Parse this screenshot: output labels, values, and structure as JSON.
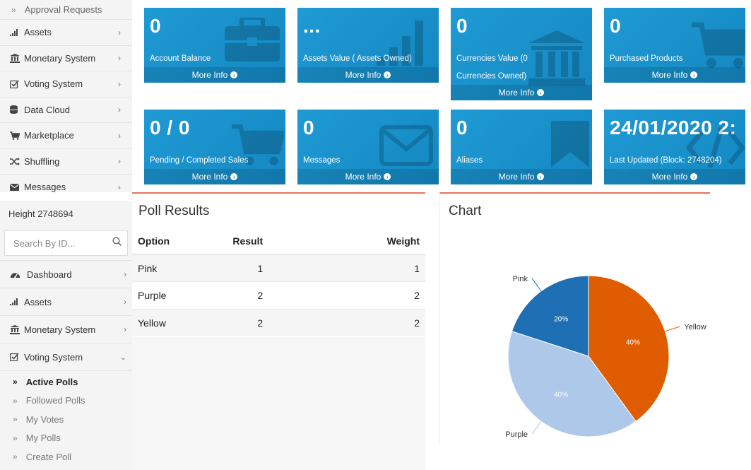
{
  "top_sidebar": {
    "approval_requests": "Approval Requests",
    "items": [
      {
        "label": "Assets",
        "icon": "bar-chart-icon"
      },
      {
        "label": "Monetary System",
        "icon": "bank-icon"
      },
      {
        "label": "Voting System",
        "icon": "checkbox-icon"
      },
      {
        "label": "Data Cloud",
        "icon": "database-icon"
      },
      {
        "label": "Marketplace",
        "icon": "cart-icon"
      },
      {
        "label": "Shuffling",
        "icon": "shuffle-icon"
      },
      {
        "label": "Messages",
        "icon": "envelope-icon"
      }
    ]
  },
  "info_boxes": [
    {
      "value": "0",
      "label": "Account Balance",
      "footer": "More Info",
      "icon": "briefcase-icon"
    },
    {
      "value": "...",
      "label": "Assets Value ( Assets Owned)",
      "footer": "More Info",
      "icon": "bar-chart-icon"
    },
    {
      "value": "0",
      "label": "Currencies Value (0",
      "label2": "Currencies Owned)",
      "footer": "More Info",
      "icon": "bank-icon"
    },
    {
      "value": "0",
      "label": "Purchased Products",
      "footer": "More Info",
      "icon": "cart-icon"
    },
    {
      "value": "0 / 0",
      "label": "Pending / Completed Sales",
      "footer": "More Info",
      "icon": "cart-icon"
    },
    {
      "value": "0",
      "label": "Messages",
      "footer": "More Info",
      "icon": "envelope-icon"
    },
    {
      "value": "0",
      "label": "Aliases",
      "footer": "More Info",
      "icon": "bookmark-icon"
    },
    {
      "value": "24/01/2020 2:",
      "label": "Last Updated (Block: 2748204)",
      "footer": "More Info",
      "icon": "code-icon"
    }
  ],
  "bottom_sidebar": {
    "height_label": "Height 2748694",
    "search_placeholder": "Search By ID...",
    "items": [
      {
        "label": "Dashboard",
        "icon": "dashboard-icon"
      },
      {
        "label": "Assets",
        "icon": "bar-chart-icon"
      },
      {
        "label": "Monetary System",
        "icon": "bank-icon"
      },
      {
        "label": "Voting System",
        "icon": "checkbox-icon"
      }
    ],
    "voting_subitems": [
      "Active Polls",
      "Followed Polls",
      "My Votes",
      "My Polls",
      "Create Poll"
    ]
  },
  "poll_results": {
    "title": "Poll Results",
    "columns": [
      "Option",
      "Result",
      "Weight"
    ],
    "rows": [
      {
        "option": "Pink",
        "result": "1",
        "weight": "1"
      },
      {
        "option": "Purple",
        "result": "2",
        "weight": "2"
      },
      {
        "option": "Yellow",
        "result": "2",
        "weight": "2"
      }
    ]
  },
  "chart_panel": {
    "title": "Chart"
  },
  "chart_data": {
    "type": "pie",
    "categories": [
      "Yellow",
      "Purple",
      "Pink"
    ],
    "values": [
      2,
      2,
      1
    ],
    "percent_labels": [
      "40%",
      "40%",
      "20%"
    ],
    "colors": [
      "#e05c00",
      "#aec8ea",
      "#1f6fb5"
    ]
  }
}
